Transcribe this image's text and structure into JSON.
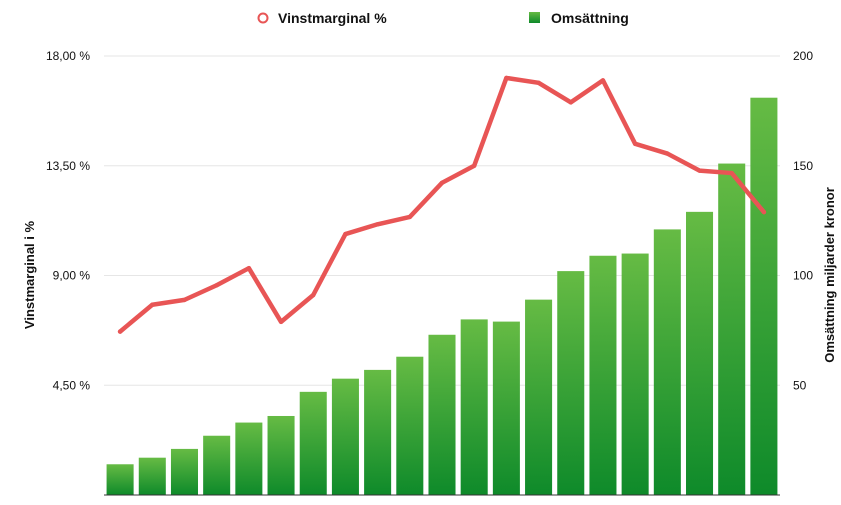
{
  "chart_data": {
    "type": "bar+line",
    "legend": {
      "line_label": "Vinstmarginal %",
      "bar_label": "Omsättning",
      "position": "top-center"
    },
    "y_left": {
      "label": "Vinstmarginal i %",
      "ticks": [
        "18,00 %",
        "13,50 %",
        "9,00 %",
        "4,50 %"
      ],
      "tick_values": [
        18,
        13.5,
        9,
        4.5
      ],
      "range": [
        0,
        18
      ]
    },
    "y_right": {
      "label": "Omsättning miljarder kronor",
      "ticks": [
        "200",
        "150",
        "100",
        "50"
      ],
      "tick_values": [
        200,
        150,
        100,
        50
      ],
      "range": [
        0,
        200
      ]
    },
    "grid": true,
    "series": [
      {
        "name": "Omsättning",
        "type": "bar",
        "axis": "right",
        "values": [
          14,
          17,
          21,
          27,
          33,
          36,
          47,
          53,
          57,
          63,
          73,
          80,
          79,
          89,
          102,
          109,
          110,
          121,
          129,
          151,
          181
        ]
      },
      {
        "name": "Vinstmarginal %",
        "type": "line",
        "axis": "left",
        "values": [
          6.7,
          7.8,
          8.0,
          8.6,
          9.3,
          7.1,
          8.2,
          10.7,
          11.1,
          11.4,
          12.8,
          13.5,
          17.1,
          16.9,
          16.1,
          17.0,
          14.4,
          14.0,
          13.3,
          13.2,
          11.6
        ]
      }
    ],
    "colors": {
      "bar_top": "#66bb44",
      "bar_bottom": "#0e8a2a",
      "line": "#e85555"
    }
  }
}
